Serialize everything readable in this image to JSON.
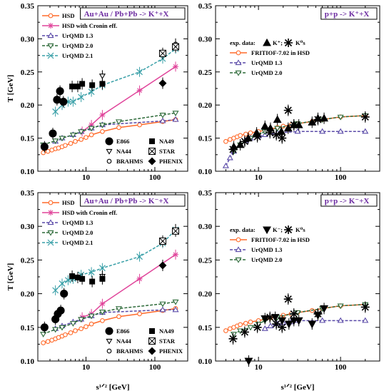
{
  "chart_data": [
    {
      "type": "line",
      "title": "Au+Au / Pb+Pb  -> K⁺+X",
      "xlabel": "",
      "ylabel": "T [GeV]",
      "xscale": "log",
      "xlim": [
        2,
        300
      ],
      "ylim": [
        0.1,
        0.35
      ],
      "x_ticks": [
        "10",
        "100"
      ],
      "y_ticks": [
        "0.10",
        "0.15",
        "0.20",
        "0.25",
        "0.30",
        "0.35"
      ],
      "legend": [
        "HSD",
        "HSD with Cronin eff.",
        "UrQMD 1.3",
        "UrQMD 2.0",
        "UrQMD 2.1"
      ],
      "legend2": [
        "E866",
        "NA49",
        "NA44",
        "STAR",
        "BRAHMS",
        "PHENIX"
      ],
      "series": [
        {
          "name": "HSD",
          "color": "#ff6a2a",
          "marker": "circle-open",
          "x": [
            2.4,
            2.8,
            3.2,
            3.6,
            4.0,
            4.5,
            5.0,
            6.0,
            7.0,
            8.5,
            10,
            12,
            17.3,
            30,
            60,
            130,
            200
          ],
          "y": [
            0.128,
            0.13,
            0.132,
            0.134,
            0.135,
            0.137,
            0.139,
            0.142,
            0.145,
            0.148,
            0.151,
            0.155,
            0.16,
            0.166,
            0.17,
            0.175,
            0.178
          ]
        },
        {
          "name": "HSD with Cronin eff.",
          "color": "#e0449a",
          "marker": "star",
          "x": [
            8.8,
            12,
            17.3,
            60,
            200
          ],
          "y": [
            0.16,
            0.17,
            0.185,
            0.222,
            0.258
          ]
        },
        {
          "name": "UrQMD 1.3",
          "color": "#5a4aa8",
          "marker": "triangle-up-open",
          "x": [
            3.6,
            4.5,
            6.5,
            8.5,
            12,
            17.3,
            130,
            200
          ],
          "y": [
            0.145,
            0.15,
            0.155,
            0.16,
            0.165,
            0.17,
            0.176,
            0.178
          ]
        },
        {
          "name": "UrQMD 2.0",
          "color": "#2e6b3a",
          "marker": "triangle-down-open",
          "x": [
            2.4,
            3.6,
            4.5,
            6.5,
            8.5,
            12,
            17.3,
            30,
            130,
            200
          ],
          "y": [
            0.14,
            0.146,
            0.15,
            0.155,
            0.16,
            0.165,
            0.17,
            0.175,
            0.185,
            0.188
          ]
        },
        {
          "name": "UrQMD 2.1",
          "color": "#3aa0a8",
          "marker": "x",
          "x": [
            3.6,
            4.5,
            5.5,
            6.5,
            8.5,
            12,
            17.3,
            60,
            130,
            200
          ],
          "y": [
            0.19,
            0.2,
            0.205,
            0.205,
            0.212,
            0.22,
            0.23,
            0.25,
            0.27,
            0.285
          ]
        },
        {
          "name": "E866",
          "color": "#000000",
          "marker": "circle-filled",
          "x": [
            2.5,
            3.3,
            3.8,
            4.2,
            4.7
          ],
          "y": [
            0.137,
            0.157,
            0.208,
            0.221,
            0.205
          ]
        },
        {
          "name": "NA44",
          "color": "#000000",
          "marker": "triangle-down-open",
          "x": [
            17.3
          ],
          "y": [
            0.244
          ]
        },
        {
          "name": "BRAHMS",
          "color": "#000000",
          "marker": "circle-open",
          "x": [
            200
          ],
          "y": [
            0.292
          ]
        },
        {
          "name": "NA49",
          "color": "#000000",
          "marker": "square-filled",
          "x": [
            6.3,
            7.6,
            8.8,
            12.3,
            17.3
          ],
          "y": [
            0.228,
            0.228,
            0.232,
            0.23,
            0.232
          ]
        },
        {
          "name": "STAR",
          "color": "#000000",
          "marker": "square-x",
          "x": [
            130,
            200
          ],
          "y": [
            0.278,
            0.288
          ]
        },
        {
          "name": "PHENIX",
          "color": "#000000",
          "marker": "diamond-filled",
          "x": [
            130
          ],
          "y": [
            0.233
          ]
        }
      ]
    },
    {
      "type": "line",
      "title": "p+p -> K⁺+X",
      "xlabel": "",
      "ylabel": "",
      "xscale": "log",
      "xlim": [
        3,
        300
      ],
      "ylim": [
        0.1,
        0.35
      ],
      "x_ticks": [
        "10",
        "100"
      ],
      "y_ticks": [
        "0.10",
        "0.15",
        "0.20",
        "0.25",
        "0.30",
        "0.35"
      ],
      "legend": [
        "exp. data:",
        "K⁺;",
        "K⁰s",
        "FRITIOF-7.02 in HSD",
        "UrQMD 1.3",
        "UrQMD 2.0"
      ],
      "series": [
        {
          "name": "FRITIOF-7.02 in HSD",
          "color": "#ff6a2a",
          "marker": "circle-open",
          "x": [
            4,
            4.5,
            5,
            5.5,
            6,
            7,
            8,
            10,
            12,
            14,
            17,
            20,
            25,
            30,
            45,
            60,
            100,
            200
          ],
          "y": [
            0.145,
            0.148,
            0.15,
            0.152,
            0.154,
            0.156,
            0.158,
            0.16,
            0.162,
            0.164,
            0.166,
            0.168,
            0.17,
            0.172,
            0.175,
            0.178,
            0.182,
            0.184
          ]
        },
        {
          "name": "UrQMD 1.3",
          "color": "#5a4aa8",
          "marker": "triangle-up-open",
          "x": [
            4,
            4.5,
            5,
            6,
            7,
            8,
            10,
            12,
            17,
            30,
            60,
            100,
            200
          ],
          "y": [
            0.108,
            0.12,
            0.13,
            0.14,
            0.146,
            0.15,
            0.153,
            0.155,
            0.158,
            0.16,
            0.16,
            0.16,
            0.16
          ]
        },
        {
          "name": "UrQMD 2.0",
          "color": "#2e6b3a",
          "marker": "triangle-down-open",
          "x": [
            5,
            6,
            8,
            10,
            12,
            17,
            30,
            60,
            100,
            200
          ],
          "y": [
            0.13,
            0.14,
            0.15,
            0.155,
            0.16,
            0.165,
            0.172,
            0.178,
            0.182,
            0.184
          ]
        },
        {
          "name": "K⁺",
          "color": "#000000",
          "marker": "triangle-up-filled",
          "x": [
            5,
            6,
            7.5,
            9.5,
            12,
            14,
            17,
            19,
            23,
            27,
            31,
            45,
            53,
            63
          ],
          "y": [
            0.137,
            0.14,
            0.15,
            0.158,
            0.168,
            0.165,
            0.178,
            0.16,
            0.165,
            0.17,
            0.17,
            0.174,
            0.18,
            0.18
          ]
        },
        {
          "name": "K⁰s",
          "color": "#000000",
          "marker": "asterisk",
          "x": [
            4.9,
            6.8,
            9.7,
            13.8,
            16.5,
            19.4,
            23,
            27,
            53,
            200
          ],
          "y": [
            0.133,
            0.145,
            0.152,
            0.158,
            0.155,
            0.15,
            0.192,
            0.17,
            0.178,
            0.182
          ]
        }
      ]
    },
    {
      "type": "line",
      "title": "Au+Au / Pb+Pb  -> K⁻+X",
      "xlabel": "s¹ᐟ² [GeV]",
      "ylabel": "T [GeV]",
      "xscale": "log",
      "xlim": [
        2,
        300
      ],
      "ylim": [
        0.1,
        0.35
      ],
      "x_ticks": [
        "10",
        "100"
      ],
      "y_ticks": [
        "0.10",
        "0.15",
        "0.20",
        "0.25",
        "0.30",
        "0.35"
      ],
      "legend": [
        "HSD",
        "HSD with Cronin eff.",
        "UrQMD 1.3",
        "UrQMD 2.0",
        "UrQMD 2.1"
      ],
      "legend2": [
        "E866",
        "NA49",
        "NA44",
        "STAR",
        "BRAHMS",
        "PHENIX"
      ],
      "series": [
        {
          "name": "HSD",
          "color": "#ff6a2a",
          "marker": "circle-open",
          "x": [
            2.4,
            2.8,
            3.2,
            3.6,
            4.0,
            4.5,
            5.0,
            6.0,
            7.0,
            8.5,
            10,
            12,
            17.3,
            30,
            60,
            130,
            200
          ],
          "y": [
            0.127,
            0.129,
            0.131,
            0.133,
            0.135,
            0.137,
            0.139,
            0.142,
            0.145,
            0.148,
            0.151,
            0.155,
            0.16,
            0.166,
            0.17,
            0.175,
            0.178
          ]
        },
        {
          "name": "HSD with Cronin eff.",
          "color": "#e0449a",
          "marker": "star",
          "x": [
            8.8,
            12,
            17.3,
            60,
            200
          ],
          "y": [
            0.165,
            0.17,
            0.185,
            0.222,
            0.258
          ]
        },
        {
          "name": "UrQMD 1.3",
          "color": "#5a4aa8",
          "marker": "triangle-up-open",
          "x": [
            3.6,
            4.5,
            6.5,
            8.5,
            12,
            17.3,
            130,
            200
          ],
          "y": [
            0.148,
            0.152,
            0.158,
            0.162,
            0.167,
            0.172,
            0.176,
            0.176
          ]
        },
        {
          "name": "UrQMD 2.0",
          "color": "#2e6b3a",
          "marker": "triangle-down-open",
          "x": [
            2.4,
            3.6,
            4.5,
            6.5,
            8.5,
            12,
            17.3,
            30,
            130,
            200
          ],
          "y": [
            0.14,
            0.147,
            0.15,
            0.156,
            0.162,
            0.167,
            0.173,
            0.178,
            0.185,
            0.188
          ]
        },
        {
          "name": "UrQMD 2.1",
          "color": "#3aa0a8",
          "marker": "x",
          "x": [
            3.6,
            4.5,
            5.5,
            6.5,
            8.5,
            12,
            17.3,
            60,
            130,
            200
          ],
          "y": [
            0.205,
            0.215,
            0.22,
            0.222,
            0.228,
            0.232,
            0.238,
            0.255,
            0.275,
            0.295
          ]
        },
        {
          "name": "E866",
          "color": "#000000",
          "marker": "circle-filled",
          "x": [
            2.5,
            3.6,
            3.9,
            4.3,
            4.8
          ],
          "y": [
            0.15,
            0.162,
            0.17,
            0.175,
            0.2
          ]
        },
        {
          "name": "NA44",
          "color": "#000000",
          "marker": "triangle-down-open",
          "x": [
            17.3
          ],
          "y": [
            0.226
          ]
        },
        {
          "name": "BRAHMS",
          "color": "#000000",
          "marker": "circle-open",
          "x": [
            200
          ],
          "y": [
            0.295
          ]
        },
        {
          "name": "NA49",
          "color": "#000000",
          "marker": "square-filled",
          "x": [
            6.3,
            7.6,
            8.8,
            12.3,
            17.3
          ],
          "y": [
            0.226,
            0.224,
            0.222,
            0.218,
            0.222
          ]
        },
        {
          "name": "STAR",
          "color": "#000000",
          "marker": "square-x",
          "x": [
            130,
            200
          ],
          "y": [
            0.278,
            0.293
          ]
        },
        {
          "name": "PHENIX",
          "color": "#000000",
          "marker": "diamond-filled",
          "x": [
            130
          ],
          "y": [
            0.242
          ]
        }
      ]
    },
    {
      "type": "line",
      "title": "p+p -> K⁻+X",
      "xlabel": "s¹ᐟ² [GeV]",
      "ylabel": "",
      "xscale": "log",
      "xlim": [
        3,
        300
      ],
      "ylim": [
        0.1,
        0.35
      ],
      "x_ticks": [
        "10",
        "100"
      ],
      "y_ticks": [
        "0.10",
        "0.15",
        "0.20",
        "0.25",
        "0.30",
        "0.35"
      ],
      "legend": [
        "exp. data:",
        "K⁻;",
        "K⁰s",
        "FRITIOF-7.02 in HSD",
        "UrQMD 1.3",
        "UrQMD 2.0"
      ],
      "series": [
        {
          "name": "FRITIOF-7.02 in HSD",
          "color": "#ff6a2a",
          "marker": "circle-open",
          "x": [
            4,
            4.5,
            5,
            5.5,
            6,
            7,
            8,
            10,
            12,
            14,
            17,
            20,
            25,
            30,
            45,
            60,
            100,
            200
          ],
          "y": [
            0.145,
            0.148,
            0.15,
            0.152,
            0.154,
            0.156,
            0.158,
            0.16,
            0.162,
            0.164,
            0.166,
            0.168,
            0.17,
            0.172,
            0.175,
            0.178,
            0.182,
            0.184
          ]
        },
        {
          "name": "UrQMD 1.3",
          "color": "#5a4aa8",
          "marker": "triangle-up-open",
          "x": [
            12,
            14,
            17,
            20,
            25,
            30,
            60,
            100,
            200
          ],
          "y": [
            0.148,
            0.152,
            0.155,
            0.157,
            0.158,
            0.16,
            0.16,
            0.16,
            0.16
          ]
        },
        {
          "name": "UrQMD 2.0",
          "color": "#2e6b3a",
          "marker": "triangle-down-open",
          "x": [
            5,
            6,
            8,
            10,
            12,
            17,
            30,
            60,
            100,
            200
          ],
          "y": [
            0.14,
            0.145,
            0.15,
            0.155,
            0.16,
            0.165,
            0.172,
            0.178,
            0.182,
            0.184
          ]
        },
        {
          "name": "K⁻",
          "color": "#000000",
          "marker": "triangle-down-filled",
          "x": [
            7.6,
            12,
            16,
            19.4,
            23.5,
            27,
            31,
            45,
            53,
            63
          ],
          "y": [
            0.1,
            0.163,
            0.165,
            0.16,
            0.155,
            0.16,
            0.16,
            0.155,
            0.168,
            0.178
          ]
        },
        {
          "name": "K⁰s",
          "color": "#000000",
          "marker": "asterisk",
          "x": [
            4.9,
            6.8,
            9.7,
            13.8,
            16.5,
            19.4,
            23,
            27,
            53,
            200
          ],
          "y": [
            0.133,
            0.143,
            0.15,
            0.165,
            0.155,
            0.15,
            0.192,
            0.17,
            0.17,
            0.18
          ]
        }
      ]
    }
  ]
}
